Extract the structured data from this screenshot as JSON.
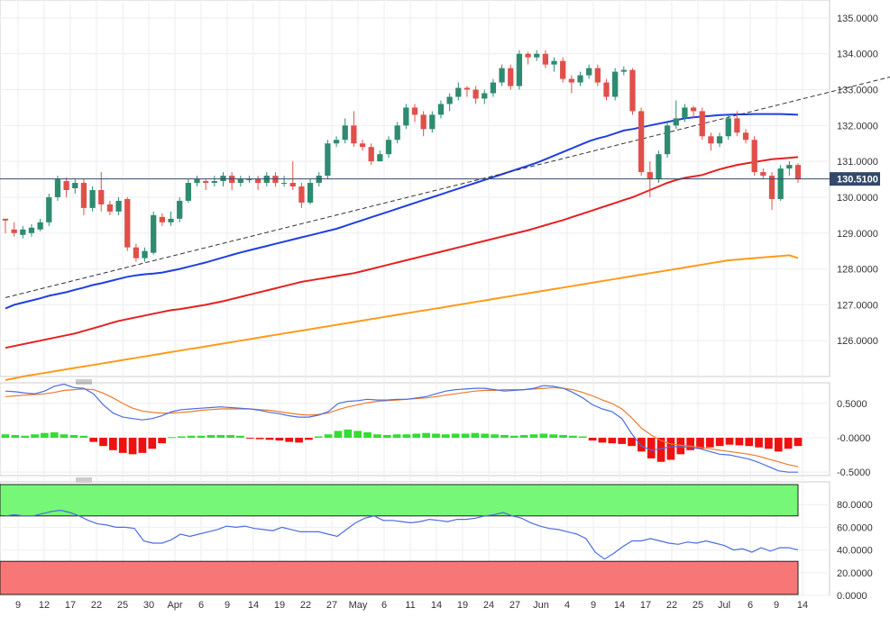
{
  "colors": {
    "up": "#2e8b70",
    "down": "#e0504a",
    "sma_blue": "#1f3fe0",
    "sma_red": "#e62020",
    "sma_orange": "#ff9a1a",
    "trendline": "#333333",
    "price_line": "#33486a",
    "price_badge": "#33486a",
    "macd_line": "#4a6ee0",
    "signal_line": "#f07a2a",
    "hist_pos": "#33dd33",
    "hist_neg": "#ee1111",
    "rsi_line": "#4a6ee0",
    "overbought_zone": "#77f777",
    "oversold_zone": "#f77777",
    "grid": "#eeeeee",
    "panel_border": "#cccccc"
  },
  "chart_data": [
    {
      "type": "candlestick",
      "ylim": [
        125.0,
        135.5
      ],
      "y_ticks": [
        "135.0000",
        "134.0000",
        "133.0000",
        "132.0000",
        "131.0000",
        "130.0000",
        "129.0000",
        "128.0000",
        "127.0000",
        "126.0000"
      ],
      "y_tick_values": [
        135,
        134,
        133,
        132,
        131,
        130,
        129,
        128,
        127,
        126
      ],
      "last_price_label": "130.5100",
      "last_price": 130.51,
      "candles": [
        [
          129.4,
          129.35,
          129.4,
          129.0
        ],
        [
          129.1,
          129.0,
          129.3,
          128.9
        ],
        [
          128.95,
          129.1,
          129.2,
          128.85
        ],
        [
          129.0,
          129.15,
          129.25,
          128.9
        ],
        [
          129.1,
          129.3,
          129.4,
          129.05
        ],
        [
          129.3,
          130.0,
          130.1,
          129.2
        ],
        [
          130.0,
          130.5,
          130.6,
          129.9
        ],
        [
          130.45,
          130.2,
          130.55,
          130.0
        ],
        [
          130.25,
          130.4,
          130.5,
          130.1
        ],
        [
          130.4,
          129.7,
          130.5,
          129.5
        ],
        [
          129.7,
          130.2,
          130.3,
          129.6
        ],
        [
          130.2,
          129.8,
          130.7,
          129.6
        ],
        [
          129.8,
          129.6,
          129.9,
          129.5
        ],
        [
          129.6,
          129.9,
          130.0,
          129.5
        ],
        [
          129.95,
          128.6,
          130.0,
          128.5
        ],
        [
          128.6,
          128.3,
          128.7,
          128.2
        ],
        [
          128.3,
          128.5,
          128.6,
          128.2
        ],
        [
          128.45,
          129.5,
          129.6,
          128.4
        ],
        [
          129.45,
          129.3,
          129.55,
          129.2
        ],
        [
          129.3,
          129.4,
          129.6,
          129.2
        ],
        [
          129.4,
          129.9,
          130.0,
          129.3
        ],
        [
          129.9,
          130.4,
          130.5,
          129.85
        ],
        [
          130.4,
          130.5,
          130.6,
          130.3
        ],
        [
          130.45,
          130.4,
          130.5,
          130.2
        ],
        [
          130.4,
          130.45,
          130.6,
          130.3
        ],
        [
          130.45,
          130.6,
          130.7,
          130.3
        ],
        [
          130.6,
          130.4,
          130.7,
          130.2
        ],
        [
          130.4,
          130.5,
          130.6,
          130.3
        ],
        [
          130.5,
          130.5,
          130.6,
          130.4
        ],
        [
          130.5,
          130.4,
          130.6,
          130.2
        ],
        [
          130.4,
          130.6,
          130.7,
          130.3
        ],
        [
          130.6,
          130.4,
          130.7,
          130.3
        ],
        [
          130.4,
          130.4,
          130.6,
          130.3
        ],
        [
          130.4,
          130.3,
          131.0,
          130.2
        ],
        [
          130.3,
          129.85,
          130.4,
          129.7
        ],
        [
          129.85,
          130.4,
          130.5,
          129.8
        ],
        [
          130.4,
          130.6,
          130.7,
          130.3
        ],
        [
          130.6,
          131.5,
          131.6,
          130.5
        ],
        [
          131.5,
          131.6,
          131.7,
          131.4
        ],
        [
          131.6,
          132.0,
          132.2,
          131.5
        ],
        [
          132.0,
          131.5,
          132.4,
          131.4
        ],
        [
          131.5,
          131.4,
          131.6,
          131.3
        ],
        [
          131.4,
          131.0,
          131.5,
          130.9
        ],
        [
          131.0,
          131.2,
          131.3,
          131.0
        ],
        [
          131.2,
          131.6,
          131.7,
          131.1
        ],
        [
          131.6,
          132.0,
          132.1,
          131.5
        ],
        [
          132.0,
          132.5,
          132.6,
          131.9
        ],
        [
          132.5,
          132.3,
          132.6,
          132.1
        ],
        [
          132.3,
          131.9,
          132.4,
          131.7
        ],
        [
          131.9,
          132.3,
          132.4,
          131.8
        ],
        [
          132.3,
          132.6,
          132.7,
          132.2
        ],
        [
          132.6,
          132.8,
          132.9,
          132.4
        ],
        [
          132.8,
          133.05,
          133.2,
          132.7
        ],
        [
          133.05,
          133.0,
          133.1,
          132.8
        ],
        [
          133.0,
          132.75,
          133.1,
          132.6
        ],
        [
          132.75,
          132.9,
          133.0,
          132.6
        ],
        [
          132.9,
          133.2,
          133.3,
          132.8
        ],
        [
          133.2,
          133.6,
          133.7,
          133.1
        ],
        [
          133.6,
          133.1,
          133.7,
          133.0
        ],
        [
          133.1,
          134.0,
          134.1,
          133.0
        ],
        [
          134.0,
          133.9,
          134.05,
          133.7
        ],
        [
          133.9,
          134.0,
          134.1,
          133.8
        ],
        [
          134.0,
          133.7,
          134.1,
          133.6
        ],
        [
          133.7,
          133.8,
          133.9,
          133.5
        ],
        [
          133.8,
          133.3,
          133.9,
          133.2
        ],
        [
          133.3,
          133.2,
          133.4,
          132.9
        ],
        [
          133.2,
          133.4,
          133.5,
          133.1
        ],
        [
          133.4,
          133.6,
          133.7,
          133.3
        ],
        [
          133.6,
          133.2,
          133.7,
          133.1
        ],
        [
          133.2,
          132.8,
          133.3,
          132.7
        ],
        [
          132.8,
          133.5,
          133.6,
          132.7
        ],
        [
          133.5,
          133.55,
          133.65,
          133.4
        ],
        [
          133.55,
          132.4,
          133.6,
          132.3
        ],
        [
          132.4,
          130.7,
          132.5,
          130.6
        ],
        [
          130.7,
          130.5,
          131.0,
          130.0
        ],
        [
          130.5,
          131.2,
          131.3,
          130.4
        ],
        [
          131.2,
          132.0,
          132.1,
          131.1
        ],
        [
          132.0,
          132.2,
          132.7,
          131.9
        ],
        [
          132.2,
          132.5,
          132.6,
          132.1
        ],
        [
          132.5,
          132.4,
          132.55,
          132.2
        ],
        [
          132.4,
          131.7,
          132.5,
          131.6
        ],
        [
          131.7,
          131.5,
          131.8,
          131.3
        ],
        [
          131.5,
          131.7,
          131.8,
          131.4
        ],
        [
          131.7,
          132.2,
          132.3,
          131.6
        ],
        [
          132.2,
          131.8,
          132.4,
          131.7
        ],
        [
          131.8,
          131.6,
          131.9,
          131.5
        ],
        [
          131.6,
          130.7,
          131.7,
          130.6
        ],
        [
          130.7,
          130.6,
          130.8,
          130.5
        ],
        [
          130.6,
          129.95,
          130.7,
          129.65
        ],
        [
          129.95,
          130.8,
          130.9,
          129.9
        ],
        [
          130.8,
          130.9,
          131.0,
          130.6
        ],
        [
          130.9,
          130.5,
          130.95,
          130.4
        ]
      ],
      "sma_50": [
        126.9,
        127.0,
        127.06,
        127.12,
        127.18,
        127.25,
        127.3,
        127.35,
        127.42,
        127.48,
        127.55,
        127.6,
        127.66,
        127.72,
        127.78,
        127.82,
        127.85,
        127.87,
        127.9,
        127.95,
        128.0,
        128.06,
        128.12,
        128.18,
        128.25,
        128.32,
        128.39,
        128.46,
        128.52,
        128.58,
        128.64,
        128.7,
        128.76,
        128.82,
        128.88,
        128.94,
        129.0,
        129.06,
        129.12,
        129.2,
        129.28,
        129.36,
        129.44,
        129.52,
        129.6,
        129.68,
        129.76,
        129.84,
        129.92,
        130.0,
        130.08,
        130.16,
        130.24,
        130.32,
        130.4,
        130.48,
        130.56,
        130.64,
        130.72,
        130.8,
        130.88,
        130.96,
        131.06,
        131.16,
        131.26,
        131.36,
        131.46,
        131.56,
        131.64,
        131.7,
        131.78,
        131.86,
        131.9,
        131.95,
        132.0,
        132.05,
        132.1,
        132.15,
        132.2,
        132.23,
        132.25,
        132.27,
        132.29,
        132.3,
        132.31,
        132.31,
        132.32,
        132.32,
        132.32,
        132.32,
        132.31,
        132.3
      ],
      "sma_100": [
        125.8,
        125.85,
        125.9,
        125.95,
        126.0,
        126.05,
        126.1,
        126.15,
        126.2,
        126.27,
        126.34,
        126.41,
        126.48,
        126.55,
        126.6,
        126.65,
        126.7,
        126.75,
        126.8,
        126.85,
        126.88,
        126.92,
        126.96,
        127.0,
        127.05,
        127.1,
        127.16,
        127.22,
        127.28,
        127.34,
        127.4,
        127.46,
        127.52,
        127.58,
        127.64,
        127.68,
        127.72,
        127.76,
        127.8,
        127.84,
        127.88,
        127.94,
        128.0,
        128.06,
        128.12,
        128.18,
        128.24,
        128.3,
        128.36,
        128.42,
        128.48,
        128.54,
        128.6,
        128.66,
        128.72,
        128.78,
        128.84,
        128.9,
        128.96,
        129.02,
        129.08,
        129.15,
        129.22,
        129.29,
        129.36,
        129.44,
        129.52,
        129.6,
        129.68,
        129.76,
        129.84,
        129.92,
        130.0,
        130.1,
        130.2,
        130.3,
        130.4,
        130.48,
        130.54,
        130.58,
        130.62,
        130.7,
        130.78,
        130.84,
        130.9,
        130.94,
        130.98,
        131.02,
        131.06,
        131.08,
        131.1,
        131.12
      ],
      "sma_200": [
        124.9,
        124.95,
        125.0,
        125.04,
        125.08,
        125.12,
        125.16,
        125.2,
        125.24,
        125.28,
        125.32,
        125.36,
        125.4,
        125.44,
        125.48,
        125.52,
        125.56,
        125.6,
        125.64,
        125.68,
        125.72,
        125.76,
        125.8,
        125.84,
        125.88,
        125.92,
        125.96,
        126.0,
        126.04,
        126.08,
        126.12,
        126.16,
        126.2,
        126.24,
        126.28,
        126.32,
        126.36,
        126.4,
        126.44,
        126.48,
        126.52,
        126.56,
        126.6,
        126.64,
        126.68,
        126.72,
        126.76,
        126.8,
        126.84,
        126.88,
        126.92,
        126.96,
        127.0,
        127.04,
        127.08,
        127.12,
        127.16,
        127.2,
        127.24,
        127.28,
        127.32,
        127.36,
        127.4,
        127.44,
        127.48,
        127.52,
        127.56,
        127.6,
        127.64,
        127.68,
        127.72,
        127.76,
        127.8,
        127.84,
        127.88,
        127.92,
        127.96,
        128.0,
        128.04,
        128.08,
        128.12,
        128.16,
        128.2,
        128.24,
        128.26,
        128.28,
        128.3,
        128.32,
        128.34,
        128.36,
        128.38,
        128.3
      ],
      "trendline": [
        [
          0,
          127.2
        ],
        [
          104,
          133.5
        ]
      ]
    },
    {
      "type": "macd",
      "ylim": [
        -0.55,
        0.8
      ],
      "y_ticks": [
        "0.5000",
        "-0.0000",
        "-0.5000"
      ],
      "y_tick_values": [
        0.5,
        0.0,
        -0.5
      ],
      "macd": [
        0.68,
        0.67,
        0.65,
        0.64,
        0.68,
        0.75,
        0.78,
        0.73,
        0.72,
        0.64,
        0.48,
        0.36,
        0.3,
        0.28,
        0.26,
        0.28,
        0.32,
        0.38,
        0.41,
        0.42,
        0.43,
        0.44,
        0.45,
        0.44,
        0.43,
        0.42,
        0.4,
        0.37,
        0.35,
        0.32,
        0.3,
        0.3,
        0.33,
        0.38,
        0.5,
        0.53,
        0.54,
        0.56,
        0.55,
        0.55,
        0.56,
        0.56,
        0.58,
        0.6,
        0.64,
        0.68,
        0.7,
        0.71,
        0.72,
        0.72,
        0.7,
        0.68,
        0.69,
        0.7,
        0.72,
        0.76,
        0.75,
        0.72,
        0.66,
        0.58,
        0.48,
        0.42,
        0.38,
        0.28,
        0.06,
        -0.12,
        -0.18,
        -0.16,
        -0.13,
        -0.13,
        -0.14,
        -0.16,
        -0.2,
        -0.24,
        -0.25,
        -0.28,
        -0.31,
        -0.36,
        -0.42,
        -0.48,
        -0.5,
        -0.5
      ],
      "signal": [
        0.6,
        0.61,
        0.62,
        0.63,
        0.64,
        0.66,
        0.69,
        0.7,
        0.71,
        0.7,
        0.65,
        0.58,
        0.5,
        0.43,
        0.39,
        0.37,
        0.36,
        0.36,
        0.37,
        0.38,
        0.4,
        0.41,
        0.42,
        0.42,
        0.42,
        0.42,
        0.41,
        0.4,
        0.38,
        0.36,
        0.34,
        0.33,
        0.34,
        0.36,
        0.41,
        0.45,
        0.48,
        0.51,
        0.53,
        0.54,
        0.55,
        0.56,
        0.57,
        0.58,
        0.6,
        0.62,
        0.64,
        0.66,
        0.68,
        0.69,
        0.69,
        0.7,
        0.7,
        0.7,
        0.71,
        0.72,
        0.73,
        0.72,
        0.7,
        0.66,
        0.61,
        0.55,
        0.5,
        0.42,
        0.29,
        0.14,
        0.04,
        -0.04,
        -0.09,
        -0.11,
        -0.12,
        -0.14,
        -0.16,
        -0.18,
        -0.2,
        -0.22,
        -0.24,
        -0.27,
        -0.31,
        -0.35,
        -0.39,
        -0.42
      ],
      "histogram": [
        0.05,
        0.04,
        0.03,
        0.05,
        0.07,
        0.08,
        0.05,
        0.04,
        0.03,
        -0.06,
        -0.12,
        -0.18,
        -0.22,
        -0.24,
        -0.22,
        -0.16,
        -0.08,
        0.01,
        0.02,
        0.03,
        0.03,
        0.04,
        0.04,
        0.04,
        0.03,
        -0.01,
        -0.02,
        -0.03,
        -0.04,
        -0.06,
        -0.07,
        -0.03,
        0.02,
        0.05,
        0.1,
        0.12,
        0.1,
        0.08,
        0.05,
        0.04,
        0.05,
        0.05,
        0.06,
        0.07,
        0.06,
        0.05,
        0.06,
        0.06,
        0.07,
        0.06,
        0.05,
        0.04,
        0.03,
        0.04,
        0.05,
        0.06,
        0.05,
        0.04,
        0.03,
        0.02,
        -0.04,
        -0.07,
        -0.08,
        -0.09,
        -0.12,
        -0.2,
        -0.3,
        -0.35,
        -0.32,
        -0.24,
        -0.18,
        -0.16,
        -0.14,
        -0.12,
        -0.1,
        -0.11,
        -0.12,
        -0.14,
        -0.16,
        -0.2,
        -0.16,
        -0.12
      ]
    },
    {
      "type": "rsi",
      "ylim": [
        0,
        100
      ],
      "y_ticks": [
        "80.0000",
        "60.0000",
        "40.0000",
        "20.0000",
        "0.0000"
      ],
      "y_tick_values": [
        80,
        60,
        40,
        20,
        0
      ],
      "overbought": 70,
      "oversold": 30,
      "rsi": [
        70,
        71,
        70,
        70,
        72,
        74,
        75,
        73,
        70,
        66,
        63,
        62,
        60,
        60,
        59,
        48,
        46,
        46,
        49,
        54,
        52,
        54,
        56,
        58,
        61,
        60,
        61,
        59,
        58,
        57,
        60,
        58,
        56,
        56,
        56,
        54,
        52,
        58,
        64,
        68,
        70,
        66,
        66,
        65,
        64,
        65,
        67,
        66,
        65,
        67,
        67,
        68,
        70,
        71,
        73,
        70,
        68,
        64,
        61,
        59,
        58,
        56,
        54,
        50,
        38,
        32,
        37,
        43,
        48,
        48,
        50,
        48,
        46,
        45,
        47,
        46,
        48,
        46,
        44,
        40,
        41,
        38,
        42,
        39,
        42,
        42,
        40
      ]
    }
  ],
  "x_axis": {
    "labels": [
      "9",
      "12",
      "17",
      "22",
      "25",
      "30",
      "Apr",
      "6",
      "9",
      "14",
      "19",
      "22",
      "27",
      "May",
      "6",
      "11",
      "14",
      "19",
      "24",
      "27",
      "Jun",
      "4",
      "9",
      "14",
      "17",
      "22",
      "25",
      "Jul",
      "6",
      "9",
      "14"
    ]
  }
}
